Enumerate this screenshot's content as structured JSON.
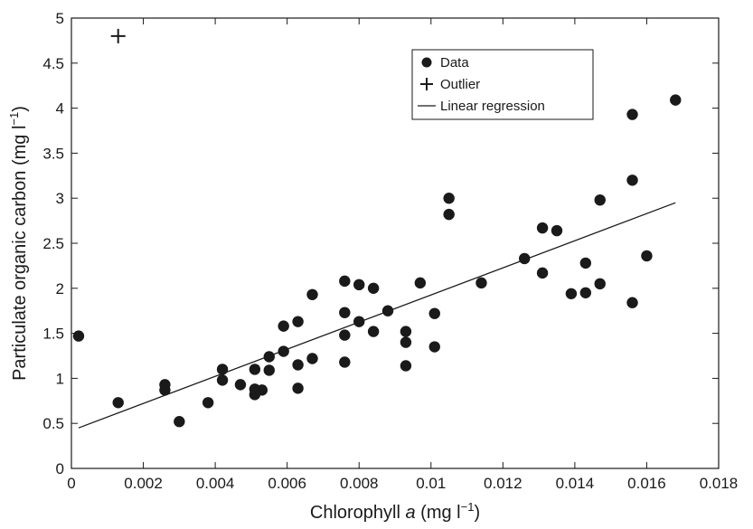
{
  "chart_data": {
    "type": "scatter",
    "xlabel": {
      "pre": "Chlorophyll ",
      "italic": "a",
      "post": " (mg l",
      "sup": "−1",
      "close": ")"
    },
    "ylabel": {
      "pre": "Particulate organic carbon (mg l",
      "sup": "−1",
      "close": ")"
    },
    "xlim": [
      0,
      0.018
    ],
    "ylim": [
      0,
      5
    ],
    "x_ticks": [
      "0",
      "0.002",
      "0.004",
      "0.006",
      "0.008",
      "0.01",
      "0.012",
      "0.014",
      "0.016",
      "0.018"
    ],
    "y_ticks": [
      "0",
      "0.5",
      "1",
      "1.5",
      "2",
      "2.5",
      "3",
      "3.5",
      "4",
      "4.5",
      "5"
    ],
    "legend": {
      "position": "top-right",
      "entries": [
        {
          "label": "Data",
          "marker": "filled-circle"
        },
        {
          "label": "Outlier",
          "marker": "plus"
        },
        {
          "label": "Linear regression",
          "marker": "line"
        }
      ]
    },
    "series": [
      {
        "name": "Data",
        "points": [
          [
            0.0002,
            1.47
          ],
          [
            0.0013,
            0.73
          ],
          [
            0.0026,
            0.93
          ],
          [
            0.0026,
            0.87
          ],
          [
            0.003,
            0.52
          ],
          [
            0.0038,
            0.73
          ],
          [
            0.0042,
            1.1
          ],
          [
            0.0042,
            0.98
          ],
          [
            0.0047,
            0.93
          ],
          [
            0.0051,
            1.1
          ],
          [
            0.0051,
            0.88
          ],
          [
            0.0051,
            0.82
          ],
          [
            0.0053,
            0.87
          ],
          [
            0.0055,
            1.24
          ],
          [
            0.0055,
            1.09
          ],
          [
            0.0059,
            1.58
          ],
          [
            0.0059,
            1.3
          ],
          [
            0.0063,
            1.63
          ],
          [
            0.0063,
            1.15
          ],
          [
            0.0063,
            0.89
          ],
          [
            0.0067,
            1.93
          ],
          [
            0.0067,
            1.22
          ],
          [
            0.0076,
            2.08
          ],
          [
            0.0076,
            1.73
          ],
          [
            0.0076,
            1.48
          ],
          [
            0.0076,
            1.18
          ],
          [
            0.008,
            2.04
          ],
          [
            0.008,
            1.63
          ],
          [
            0.0084,
            2.0
          ],
          [
            0.0084,
            1.52
          ],
          [
            0.0088,
            1.75
          ],
          [
            0.0093,
            1.52
          ],
          [
            0.0093,
            1.4
          ],
          [
            0.0093,
            1.14
          ],
          [
            0.0097,
            2.06
          ],
          [
            0.0101,
            1.72
          ],
          [
            0.0101,
            1.35
          ],
          [
            0.0105,
            3.0
          ],
          [
            0.0105,
            2.82
          ],
          [
            0.0114,
            2.06
          ],
          [
            0.0126,
            2.33
          ],
          [
            0.0131,
            2.67
          ],
          [
            0.0131,
            2.17
          ],
          [
            0.0135,
            2.64
          ],
          [
            0.0139,
            1.94
          ],
          [
            0.0143,
            2.28
          ],
          [
            0.0143,
            1.95
          ],
          [
            0.0147,
            2.98
          ],
          [
            0.0147,
            2.05
          ],
          [
            0.0156,
            3.93
          ],
          [
            0.0156,
            3.2
          ],
          [
            0.0156,
            1.84
          ],
          [
            0.016,
            2.36
          ],
          [
            0.0168,
            4.09
          ]
        ]
      },
      {
        "name": "Outlier",
        "points": [
          [
            0.0013,
            4.8
          ]
        ]
      },
      {
        "name": "Linear regression",
        "line": [
          [
            0.0002,
            0.45
          ],
          [
            0.0168,
            2.95
          ]
        ]
      }
    ],
    "grid": false
  }
}
